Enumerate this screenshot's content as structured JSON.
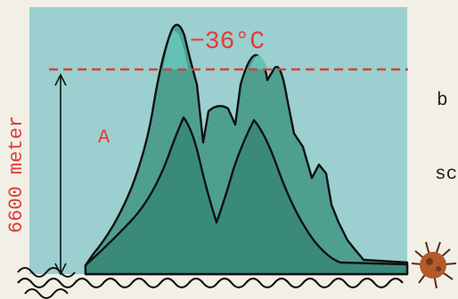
{
  "figure": {
    "temperature_label": "−36°C",
    "height_label": "6600 meter",
    "region_label": "A",
    "side_text_1": "b",
    "side_text_2": "sc",
    "colors": {
      "sky": "#9ccfcf",
      "mountain_back": "#4e9f8f",
      "mountain_front": "#3a8a7c",
      "peak_highlight": "#63c2b4",
      "annotation_red": "#e03c3c",
      "outline": "#111111",
      "background": "#f2efe6"
    }
  }
}
